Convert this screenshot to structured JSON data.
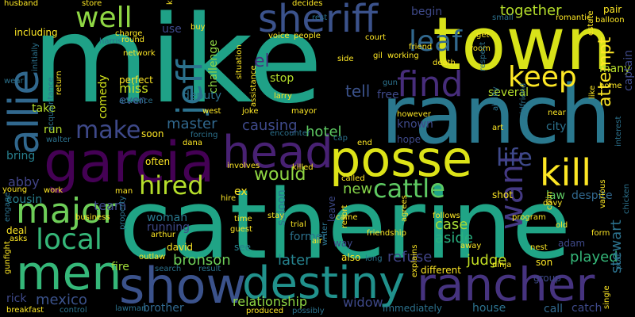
{
  "background": "#000000",
  "palette": [
    "#440154",
    "#46327e",
    "#365c8d",
    "#277f8e",
    "#1fa187",
    "#4ac16d",
    "#a0da39",
    "#fde725"
  ],
  "words": [
    {
      "text": "mike",
      "color": "#1fa187"
    },
    {
      "text": "town",
      "color": "#d8e219"
    },
    {
      "text": "ranch",
      "color": "#2a788e"
    },
    {
      "text": "catherine",
      "color": "#20a486"
    },
    {
      "text": "sheriff",
      "color": "#3b528b"
    },
    {
      "text": "garcia",
      "color": "#440154"
    },
    {
      "text": "head",
      "color": "#482173"
    },
    {
      "text": "posse",
      "color": "#dde318"
    },
    {
      "text": "destiny",
      "color": "#21918c"
    },
    {
      "text": "show",
      "color": "#3b528b"
    },
    {
      "text": "rancher",
      "color": "#46337f"
    },
    {
      "text": "men",
      "color": "#35b779"
    },
    {
      "text": "major",
      "color": "#6ece58"
    },
    {
      "text": "find",
      "color": "#472d7b"
    },
    {
      "text": "allie",
      "color": "#31688e"
    },
    {
      "text": "jeff",
      "color": "#2c728e"
    },
    {
      "text": "well",
      "color": "#8fd744"
    },
    {
      "text": "keep",
      "color": "#fde725"
    },
    {
      "text": "kill",
      "color": "#fde725"
    },
    {
      "text": "leaf",
      "color": "#31688e"
    },
    {
      "text": "local",
      "color": "#35b779"
    },
    {
      "text": "cattle",
      "color": "#5ec962"
    },
    {
      "text": "hired",
      "color": "#b5de2b"
    },
    {
      "text": "want",
      "color": "#443983"
    },
    {
      "text": "life",
      "color": "#3e4989"
    },
    {
      "text": "make",
      "color": "#3e4989"
    },
    {
      "text": "attempt",
      "color": "#fde725"
    },
    {
      "text": "together",
      "color": "#b5de2b"
    },
    {
      "text": "tell",
      "color": "#3b528b"
    },
    {
      "text": "el",
      "color": "#46337f"
    },
    {
      "text": "would",
      "color": "#90d743"
    },
    {
      "text": "master",
      "color": "#31688e"
    },
    {
      "text": "causing",
      "color": "#3e4989"
    },
    {
      "text": "hotel",
      "color": "#5ec962"
    },
    {
      "text": "new",
      "color": "#86d549"
    },
    {
      "text": "bronson",
      "color": "#6ece58"
    },
    {
      "text": "later",
      "color": "#26828e"
    },
    {
      "text": "relationship",
      "color": "#8fd744"
    },
    {
      "text": "refuse",
      "color": "#414487"
    },
    {
      "text": "judge",
      "color": "#c2df23"
    },
    {
      "text": "played",
      "color": "#35b779"
    },
    {
      "text": "widow",
      "color": "#3e4989"
    },
    {
      "text": "stewart",
      "color": "#2c728e"
    },
    {
      "text": "case",
      "color": "#a5db36"
    },
    {
      "text": "aside",
      "color": "#29af7f"
    },
    {
      "text": "mexico",
      "color": "#3b528b"
    },
    {
      "text": "abby",
      "color": "#414487"
    },
    {
      "text": "team",
      "color": "#3e4989"
    },
    {
      "text": "miss",
      "color": "#c8e020"
    },
    {
      "text": "comedy",
      "color": "#d2e21b"
    },
    {
      "text": "challenge",
      "color": "#90d743"
    },
    {
      "text": "deputy",
      "color": "#2c728e"
    },
    {
      "text": "even",
      "color": "#3b528b"
    },
    {
      "text": "stop",
      "color": "#b5de2b"
    },
    {
      "text": "several",
      "color": "#b5de2b"
    },
    {
      "text": "many",
      "color": "#b5de2b"
    },
    {
      "text": "captain",
      "color": "#3e4989"
    },
    {
      "text": "city",
      "color": "#2c728e"
    },
    {
      "text": "law",
      "color": "#5ec962"
    },
    {
      "text": "despite",
      "color": "#31688e"
    },
    {
      "text": "run",
      "color": "#b5de2b"
    },
    {
      "text": "take",
      "color": "#b5de2b"
    },
    {
      "text": "begin",
      "color": "#3e4989"
    },
    {
      "text": "use",
      "color": "#3e4989"
    },
    {
      "text": "bring",
      "color": "#277f8e"
    },
    {
      "text": "cousin",
      "color": "#277f8e"
    },
    {
      "text": "fire",
      "color": "#a0da39"
    },
    {
      "text": "rick",
      "color": "#3e4989"
    },
    {
      "text": "woman",
      "color": "#2a788e"
    },
    {
      "text": "ex",
      "color": "#fde725"
    },
    {
      "text": "saloon",
      "color": "#2c728e"
    },
    {
      "text": "known",
      "color": "#3e4989"
    },
    {
      "text": "running",
      "color": "#3e4989"
    },
    {
      "text": "former",
      "color": "#2c728e"
    },
    {
      "text": "house",
      "color": "#2c728e"
    },
    {
      "text": "catch",
      "color": "#3e4989"
    },
    {
      "text": "brother",
      "color": "#31688e"
    },
    {
      "text": "call",
      "color": "#31688e"
    },
    {
      "text": "free",
      "color": "#3e4989"
    },
    {
      "text": "hope",
      "color": "#3e4989"
    },
    {
      "text": "leave",
      "color": "#3e4989"
    },
    {
      "text": "david",
      "color": "#fde725"
    },
    {
      "text": "shot",
      "color": "#fde725"
    },
    {
      "text": "way",
      "color": "#3e4989"
    },
    {
      "text": "son",
      "color": "#fde725"
    },
    {
      "text": "adam",
      "color": "#3e4989"
    },
    {
      "text": "group",
      "color": "#3e4989"
    },
    {
      "text": "immediately",
      "color": "#2c728e"
    },
    {
      "text": "different",
      "color": "#fde725"
    },
    {
      "text": "also",
      "color": "#fde725"
    },
    {
      "text": "see",
      "color": "#277f8e"
    },
    {
      "text": "soon",
      "color": "#fde725"
    },
    {
      "text": "often",
      "color": "#fde725"
    },
    {
      "text": "perfect",
      "color": "#fde725"
    },
    {
      "text": "advance",
      "color": "#2c728e"
    },
    {
      "text": "network",
      "color": "#fde725"
    },
    {
      "text": "including",
      "color": "#fde725"
    },
    {
      "text": "harris",
      "color": "#2c728e"
    },
    {
      "text": "charge",
      "color": "#fde725"
    },
    {
      "text": "round",
      "color": "#fde725"
    },
    {
      "text": "voice",
      "color": "#fde725"
    },
    {
      "text": "people",
      "color": "#fde725"
    },
    {
      "text": "court",
      "color": "#fde725"
    },
    {
      "text": "friend",
      "color": "#fde725"
    },
    {
      "text": "working",
      "color": "#fde725"
    },
    {
      "text": "gil",
      "color": "#fde725"
    },
    {
      "text": "side",
      "color": "#fde725"
    },
    {
      "text": "death",
      "color": "#fde725"
    },
    {
      "text": "room",
      "color": "#fde725"
    },
    {
      "text": "pair",
      "color": "#fde725"
    },
    {
      "text": "balloon",
      "color": "#fde725"
    },
    {
      "text": "romantic",
      "color": "#fde725"
    },
    {
      "text": "small",
      "color": "#2c728e"
    },
    {
      "text": "estate",
      "color": "#fde725"
    },
    {
      "text": "husband",
      "color": "#fde725"
    },
    {
      "text": "store",
      "color": "#fde725"
    },
    {
      "text": "decides",
      "color": "#fde725"
    },
    {
      "text": "rest",
      "color": "#2c728e"
    },
    {
      "text": "get",
      "color": "#fde725"
    },
    {
      "text": "larry",
      "color": "#fde725"
    },
    {
      "text": "mayor",
      "color": "#fde725"
    },
    {
      "text": "joke",
      "color": "#fde725"
    },
    {
      "text": "west",
      "color": "#fde725"
    },
    {
      "text": "however",
      "color": "#fde725"
    },
    {
      "text": "ability",
      "color": "#2c728e"
    },
    {
      "text": "girlfriend",
      "color": "#2c728e"
    },
    {
      "text": "art",
      "color": "#fde725"
    },
    {
      "text": "near",
      "color": "#fde725"
    },
    {
      "text": "like",
      "color": "#fde725"
    },
    {
      "text": "home",
      "color": "#fde725"
    },
    {
      "text": "dana",
      "color": "#fde725"
    },
    {
      "text": "killed",
      "color": "#fde725"
    },
    {
      "text": "called",
      "color": "#fde725"
    },
    {
      "text": "end",
      "color": "#fde725"
    },
    {
      "text": "cap",
      "color": "#2c728e"
    },
    {
      "text": "involves",
      "color": "#fde725"
    },
    {
      "text": "hire",
      "color": "#fde725"
    },
    {
      "text": "encounter",
      "color": "#2c728e"
    },
    {
      "text": "forcing",
      "color": "#2c728e"
    },
    {
      "text": "walter",
      "color": "#2c728e"
    },
    {
      "text": "young",
      "color": "#fde725"
    },
    {
      "text": "man",
      "color": "#fde725"
    },
    {
      "text": "work",
      "color": "#fde725"
    },
    {
      "text": "business",
      "color": "#fde725"
    },
    {
      "text": "engage",
      "color": "#2c728e"
    },
    {
      "text": "deal",
      "color": "#fde725"
    },
    {
      "text": "asks",
      "color": "#fde725"
    },
    {
      "text": "gunfight",
      "color": "#fde725"
    },
    {
      "text": "breakfast",
      "color": "#fde725"
    },
    {
      "text": "control",
      "color": "#2c728e"
    },
    {
      "text": "lawman",
      "color": "#2c728e"
    },
    {
      "text": "produced",
      "color": "#fde725"
    },
    {
      "text": "possibly",
      "color": "#2c728e"
    },
    {
      "text": "outlaw",
      "color": "#fde725"
    },
    {
      "text": "search",
      "color": "#2c728e"
    },
    {
      "text": "result",
      "color": "#2c728e"
    },
    {
      "text": "arthur",
      "color": "#fde725"
    },
    {
      "text": "property",
      "color": "#2c728e"
    },
    {
      "text": "guest",
      "color": "#fde725"
    },
    {
      "text": "time",
      "color": "#fde725"
    },
    {
      "text": "stay",
      "color": "#fde725"
    },
    {
      "text": "trial",
      "color": "#fde725"
    },
    {
      "text": "air",
      "color": "#fde725"
    },
    {
      "text": "resort",
      "color": "#fde725"
    },
    {
      "text": "friendship",
      "color": "#fde725"
    },
    {
      "text": "came",
      "color": "#fde725"
    },
    {
      "text": "agrees",
      "color": "#fde725"
    },
    {
      "text": "follows",
      "color": "#fde725"
    },
    {
      "text": "away",
      "color": "#fde725"
    },
    {
      "text": "nest",
      "color": "#fde725"
    },
    {
      "text": "ninja",
      "color": "#fde725"
    },
    {
      "text": "explains",
      "color": "#fde725"
    },
    {
      "text": "program",
      "color": "#fde725"
    },
    {
      "text": "colin",
      "color": "#fde725"
    },
    {
      "text": "old",
      "color": "#fde725"
    },
    {
      "text": "form",
      "color": "#fde725"
    },
    {
      "text": "single",
      "color": "#fde725"
    },
    {
      "text": "prof",
      "color": "#2c728e"
    },
    {
      "text": "chicken",
      "color": "#2c728e"
    },
    {
      "text": "various",
      "color": "#fde725"
    },
    {
      "text": "davy",
      "color": "#fde725"
    },
    {
      "text": "gun",
      "color": "#2c728e"
    },
    {
      "text": "acquaintance",
      "color": "#2c728e"
    },
    {
      "text": "return",
      "color": "#fde725"
    },
    {
      "text": "wear",
      "color": "#2c728e"
    },
    {
      "text": "initially",
      "color": "#2c728e"
    },
    {
      "text": "situation",
      "color": "#fde725"
    },
    {
      "text": "assistance",
      "color": "#fde725"
    },
    {
      "text": "respect",
      "color": "#2c728e"
    },
    {
      "text": "know",
      "color": "#fde725"
    },
    {
      "text": "buy",
      "color": "#fde725"
    },
    {
      "text": "writer",
      "color": "#2c728e"
    },
    {
      "text": "long",
      "color": "#2c728e"
    },
    {
      "text": "interest",
      "color": "#2c728e"
    }
  ]
}
